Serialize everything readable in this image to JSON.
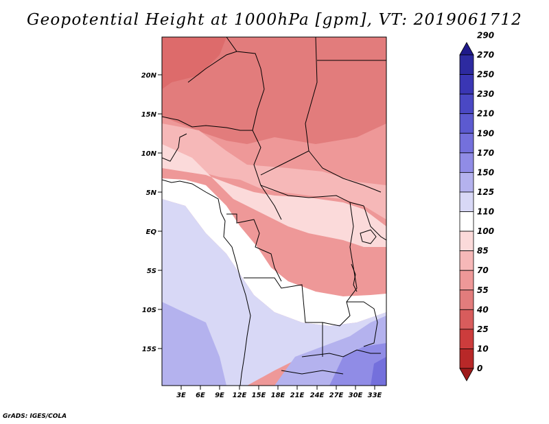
{
  "title": "Geopotential Height at 1000hPa [gpm], VT: 2019061712",
  "credit": "GrADS: IGES/COLA",
  "map": {
    "lat_labels": [
      "20N",
      "15N",
      "10N",
      "5N",
      "EQ",
      "5S",
      "10S",
      "15S"
    ],
    "lon_labels": [
      "3E",
      "6E",
      "9E",
      "12E",
      "15E",
      "18E",
      "21E",
      "24E",
      "27E",
      "30E",
      "33E"
    ]
  },
  "colorbar": {
    "levels": [
      "290",
      "270",
      "250",
      "230",
      "210",
      "190",
      "170",
      "150",
      "125",
      "110",
      "100",
      "85",
      "70",
      "55",
      "40",
      "25",
      "10",
      "0"
    ],
    "colors": [
      "#1f1a8a",
      "#2d2aa0",
      "#3a36b4",
      "#4a48c4",
      "#5c5ad0",
      "#7470dc",
      "#908ce6",
      "#b4b2ee",
      "#d8d8f6",
      "#ffffff",
      "#fbdada",
      "#f6b8b8",
      "#ee9898",
      "#e27c7c",
      "#d85c5c",
      "#cc3c3c",
      "#b82828",
      "#9e1a1a"
    ]
  }
}
